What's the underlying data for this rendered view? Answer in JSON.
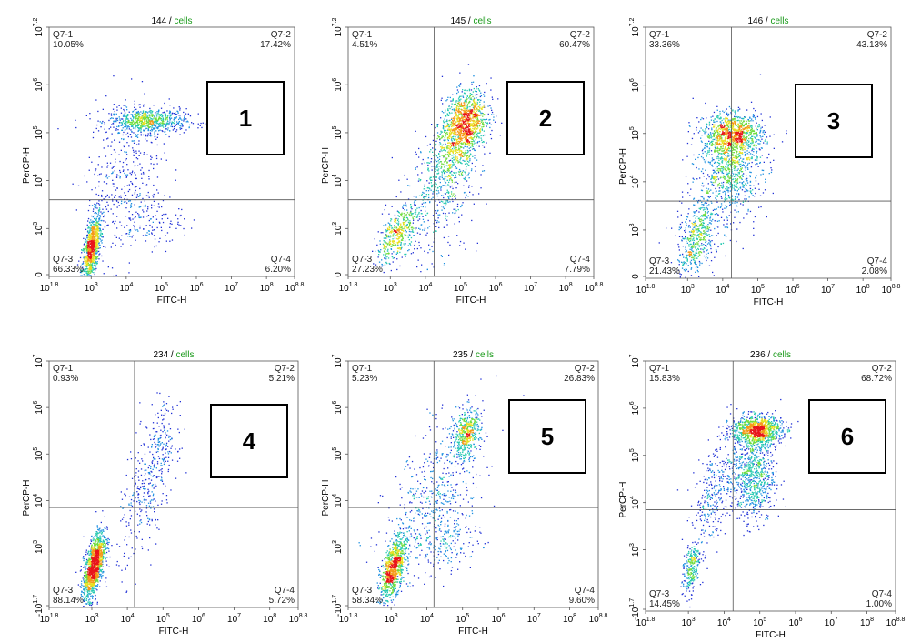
{
  "chart_data": [
    {
      "type": "scatter",
      "title_id": "144",
      "title_sep": " / ",
      "title_label": "cells",
      "xlabel": "FITC-H",
      "ylabel": "PerCP-H",
      "x_ticks": [
        "10^1.8",
        "10^3",
        "10^4",
        "10^5",
        "10^6",
        "10^7",
        "10^8",
        "10^8.8"
      ],
      "y_ticks": [
        "0",
        "10^3",
        "10^4",
        "10^5",
        "10^6",
        "10^7.2"
      ],
      "xlim": [
        1.8,
        8.8
      ],
      "ylim": [
        2.0,
        7.2
      ],
      "gate": {
        "x": 4.25,
        "y": 3.6
      },
      "quadrants": [
        {
          "name": "Q7-1",
          "percent": "10.05%"
        },
        {
          "name": "Q7-2",
          "percent": "17.42%"
        },
        {
          "name": "Q7-3",
          "percent": "66.33%"
        },
        {
          "name": "Q7-4",
          "percent": "6.20%"
        }
      ],
      "panel_label": "1",
      "clusters": [
        {
          "x": 3.0,
          "y": 2.6,
          "sx": 0.14,
          "sy": 0.38,
          "n": 900,
          "rho": 0.6
        },
        {
          "x": 4.6,
          "y": 5.25,
          "sx": 0.55,
          "sy": 0.13,
          "n": 700,
          "rho": 0
        },
        {
          "x": 3.9,
          "y": 4.2,
          "sx": 0.55,
          "sy": 0.9,
          "n": 350,
          "rho": 0.3
        },
        {
          "x": 4.6,
          "y": 3.2,
          "sx": 0.5,
          "sy": 0.3,
          "n": 150,
          "rho": 0
        }
      ]
    },
    {
      "type": "scatter",
      "title_id": "145",
      "title_sep": " / ",
      "title_label": "cells",
      "xlabel": "FITC-H",
      "ylabel": "PerCP-H",
      "x_ticks": [
        "10^1.8",
        "10^3",
        "10^4",
        "10^5",
        "10^6",
        "10^7",
        "10^8",
        "10^8.8"
      ],
      "y_ticks": [
        "0",
        "10^3",
        "10^4",
        "10^5",
        "10^6",
        "10^7.2"
      ],
      "xlim": [
        1.8,
        8.8
      ],
      "ylim": [
        2.0,
        7.2
      ],
      "gate": {
        "x": 4.25,
        "y": 3.6
      },
      "quadrants": [
        {
          "name": "Q7-1",
          "percent": "4.51%"
        },
        {
          "name": "Q7-2",
          "percent": "60.47%"
        },
        {
          "name": "Q7-3",
          "percent": "27.23%"
        },
        {
          "name": "Q7-4",
          "percent": "7.79%"
        }
      ],
      "panel_label": "2",
      "clusters": [
        {
          "x": 5.1,
          "y": 5.2,
          "sx": 0.32,
          "sy": 0.35,
          "n": 1100,
          "rho": 0.3
        },
        {
          "x": 4.7,
          "y": 4.4,
          "sx": 0.4,
          "sy": 0.5,
          "n": 500,
          "rho": 0.4
        },
        {
          "x": 3.2,
          "y": 2.9,
          "sx": 0.3,
          "sy": 0.3,
          "n": 450,
          "rho": 0.6
        },
        {
          "x": 4.3,
          "y": 3.5,
          "sx": 0.6,
          "sy": 0.7,
          "n": 250,
          "rho": 0.3
        }
      ]
    },
    {
      "type": "scatter",
      "title_id": "146",
      "title_sep": " / ",
      "title_label": "cells",
      "xlabel": "FITC-H",
      "ylabel": "PerCP-H",
      "x_ticks": [
        "10^1.8",
        "10^3",
        "10^4",
        "10^5",
        "10^6",
        "10^7",
        "10^8",
        "10^8.8"
      ],
      "y_ticks": [
        "0",
        "10^3",
        "10^4",
        "10^5",
        "10^6",
        "10^7.2"
      ],
      "xlim": [
        1.8,
        8.8
      ],
      "ylim": [
        2.0,
        7.2
      ],
      "gate": {
        "x": 4.25,
        "y": 3.6
      },
      "quadrants": [
        {
          "name": "Q7-1",
          "percent": "33.36%"
        },
        {
          "name": "Q7-2",
          "percent": "43.13%"
        },
        {
          "name": "Q7-3",
          "percent": "21.43%"
        },
        {
          "name": "Q7-4",
          "percent": "2.08%"
        }
      ],
      "panel_label": "3",
      "clusters": [
        {
          "x": 4.3,
          "y": 5.0,
          "sx": 0.42,
          "sy": 0.2,
          "n": 900,
          "rho": 0
        },
        {
          "x": 4.2,
          "y": 4.3,
          "sx": 0.45,
          "sy": 0.45,
          "n": 800,
          "rho": 0
        },
        {
          "x": 3.2,
          "y": 2.8,
          "sx": 0.2,
          "sy": 0.35,
          "n": 300,
          "rho": 0.5
        },
        {
          "x": 3.5,
          "y": 3.1,
          "sx": 0.45,
          "sy": 0.5,
          "n": 250,
          "rho": 0.3
        }
      ]
    },
    {
      "type": "scatter",
      "title_id": "234",
      "title_sep": " / ",
      "title_label": "cells",
      "xlabel": "FITC-H",
      "ylabel": "PerCP-H",
      "x_ticks": [
        "10^1.8",
        "10^3",
        "10^4",
        "10^5",
        "10^6",
        "10^7",
        "10^8",
        "10^8.8"
      ],
      "y_ticks": [
        "-10^1.7",
        "10^3",
        "10^4",
        "10^5",
        "10^6",
        "10^7"
      ],
      "xlim": [
        1.8,
        8.8
      ],
      "ylim": [
        1.7,
        7.0
      ],
      "gate": {
        "x": 4.2,
        "y": 3.85
      },
      "quadrants": [
        {
          "name": "Q7-1",
          "percent": "0.93%"
        },
        {
          "name": "Q7-2",
          "percent": "5.21%"
        },
        {
          "name": "Q7-3",
          "percent": "88.14%"
        },
        {
          "name": "Q7-4",
          "percent": "5.72%"
        }
      ],
      "panel_label": "4",
      "clusters": [
        {
          "x": 3.05,
          "y": 2.6,
          "sx": 0.15,
          "sy": 0.38,
          "n": 1300,
          "rho": 0.6
        },
        {
          "x": 4.5,
          "y": 4.2,
          "sx": 0.4,
          "sy": 0.8,
          "n": 300,
          "rho": 0.6
        },
        {
          "x": 5.0,
          "y": 5.3,
          "sx": 0.2,
          "sy": 0.4,
          "n": 120,
          "rho": 0
        }
      ]
    },
    {
      "type": "scatter",
      "title_id": "235",
      "title_sep": " / ",
      "title_label": "cells",
      "xlabel": "FITC-H",
      "ylabel": "PerCP-H",
      "x_ticks": [
        "10^1.8",
        "10^3",
        "10^4",
        "10^5",
        "10^6",
        "10^7",
        "10^8",
        "10^8.8"
      ],
      "y_ticks": [
        "-10^1.7",
        "10^3",
        "10^4",
        "10^5",
        "10^6",
        "10^7"
      ],
      "xlim": [
        1.8,
        8.8
      ],
      "ylim": [
        1.7,
        7.0
      ],
      "gate": {
        "x": 4.2,
        "y": 3.85
      },
      "quadrants": [
        {
          "name": "Q7-1",
          "percent": "5.23%"
        },
        {
          "name": "Q7-2",
          "percent": "26.83%"
        },
        {
          "name": "Q7-3",
          "percent": "58.34%"
        },
        {
          "name": "Q7-4",
          "percent": "9.60%"
        }
      ],
      "panel_label": "5",
      "clusters": [
        {
          "x": 3.05,
          "y": 2.55,
          "sx": 0.18,
          "sy": 0.35,
          "n": 900,
          "rho": 0.6
        },
        {
          "x": 5.1,
          "y": 5.45,
          "sx": 0.2,
          "sy": 0.25,
          "n": 450,
          "rho": 0.3
        },
        {
          "x": 4.2,
          "y": 4.1,
          "sx": 0.7,
          "sy": 0.9,
          "n": 500,
          "rho": 0.6
        },
        {
          "x": 4.6,
          "y": 3.2,
          "sx": 0.45,
          "sy": 0.35,
          "n": 200,
          "rho": 0
        }
      ]
    },
    {
      "type": "scatter",
      "title_id": "236",
      "title_sep": " / ",
      "title_label": "cells",
      "xlabel": "FITC-H",
      "ylabel": "PerCP-H",
      "x_ticks": [
        "10^1.8",
        "10^3",
        "10^4",
        "10^5",
        "10^6",
        "10^7",
        "10^8",
        "10^8.8"
      ],
      "y_ticks": [
        "-10^1.7",
        "10^3",
        "10^4",
        "10^5",
        "10^6",
        "10^7"
      ],
      "xlim": [
        1.8,
        8.8
      ],
      "ylim": [
        1.7,
        7.0
      ],
      "gate": {
        "x": 4.25,
        "y": 3.85
      },
      "quadrants": [
        {
          "name": "Q7-1",
          "percent": "15.83%"
        },
        {
          "name": "Q7-2",
          "percent": "68.72%"
        },
        {
          "name": "Q7-3",
          "percent": "14.45%"
        },
        {
          "name": "Q7-4",
          "percent": "1.00%"
        }
      ],
      "panel_label": "6",
      "clusters": [
        {
          "x": 4.9,
          "y": 5.55,
          "sx": 0.35,
          "sy": 0.15,
          "n": 1000,
          "rho": 0
        },
        {
          "x": 4.8,
          "y": 4.6,
          "sx": 0.3,
          "sy": 0.5,
          "n": 800,
          "rho": 0
        },
        {
          "x": 3.7,
          "y": 4.2,
          "sx": 0.3,
          "sy": 0.6,
          "n": 300,
          "rho": 0.5
        },
        {
          "x": 3.05,
          "y": 2.6,
          "sx": 0.12,
          "sy": 0.3,
          "n": 250,
          "rho": 0.5
        }
      ]
    }
  ]
}
